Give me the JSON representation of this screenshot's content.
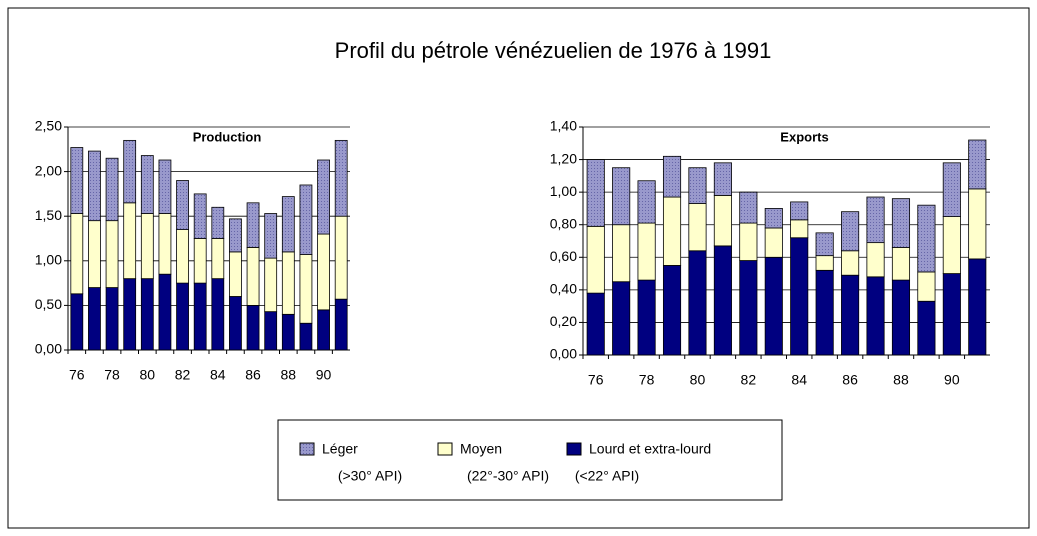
{
  "title": "Profil du pétrole vénézuelien de 1976 à 1991",
  "legend": [
    {
      "name": "Léger",
      "detail": "(>30° API)",
      "color": "#9999cc"
    },
    {
      "name": "Moyen",
      "detail": "(22°-30° API)",
      "color": "#ffffcc"
    },
    {
      "name": "Lourd et extra-lourd",
      "detail": "(<22° API)",
      "color": "#000080"
    }
  ],
  "chart_data": [
    {
      "type": "stacked_bar",
      "title": "Production",
      "categories": [
        "76",
        null,
        "78",
        null,
        "80",
        null,
        "82",
        null,
        "84",
        null,
        "86",
        null,
        "88",
        null,
        "90",
        null
      ],
      "series": [
        {
          "values": [
            0.74,
            0.78,
            0.7,
            0.7,
            0.65,
            0.6,
            0.55,
            0.5,
            0.35,
            0.37,
            0.5,
            0.5,
            0.62,
            0.78,
            0.83,
            0.85
          ]
        },
        {
          "values": [
            0.9,
            0.75,
            0.75,
            0.85,
            0.73,
            0.68,
            0.6,
            0.5,
            0.45,
            0.5,
            0.65,
            0.6,
            0.7,
            0.77,
            0.85,
            0.93
          ]
        },
        {
          "values": [
            0.63,
            0.7,
            0.7,
            0.8,
            0.8,
            0.85,
            0.75,
            0.75,
            0.8,
            0.6,
            0.5,
            0.43,
            0.4,
            0.3,
            0.45,
            0.57
          ]
        }
      ],
      "ylim": [
        0,
        2.5
      ],
      "yticks": [
        {
          "value": 0,
          "label": "0,00"
        },
        {
          "value": 0.5,
          "label": "0,50"
        },
        {
          "value": 1,
          "label": "1,00"
        },
        {
          "value": 1.5,
          "label": "1,50"
        },
        {
          "value": 2,
          "label": "2,00"
        },
        {
          "value": 2.5,
          "label": "2,50"
        }
      ],
      "grid": true
    },
    {
      "type": "stacked_bar",
      "title": "Exports",
      "categories": [
        "76",
        null,
        "78",
        null,
        "80",
        null,
        "82",
        null,
        "84",
        null,
        "86",
        null,
        "88",
        null,
        "90",
        null
      ],
      "series": [
        {
          "values": [
            0.41,
            0.35,
            0.26,
            0.25,
            0.22,
            0.2,
            0.19,
            0.12,
            0.11,
            0.14,
            0.24,
            0.28,
            0.3,
            0.41,
            0.33,
            0.3
          ]
        },
        {
          "values": [
            0.41,
            0.35,
            0.35,
            0.42,
            0.29,
            0.31,
            0.23,
            0.18,
            0.11,
            0.09,
            0.15,
            0.21,
            0.2,
            0.18,
            0.35,
            0.43
          ]
        },
        {
          "values": [
            0.38,
            0.45,
            0.46,
            0.55,
            0.64,
            0.67,
            0.58,
            0.6,
            0.72,
            0.52,
            0.49,
            0.48,
            0.46,
            0.33,
            0.5,
            0.59
          ]
        }
      ],
      "ylim": [
        0,
        1.4
      ],
      "yticks": [
        {
          "value": 0,
          "label": "0,00"
        },
        {
          "value": 0.2,
          "label": "0,20"
        },
        {
          "value": 0.4,
          "label": "0,40"
        },
        {
          "value": 0.6,
          "label": "0,60"
        },
        {
          "value": 0.8,
          "label": "0,80"
        },
        {
          "value": 1,
          "label": "1,00"
        },
        {
          "value": 1.2,
          "label": "1,20"
        },
        {
          "value": 1.4,
          "label": "1,40"
        }
      ],
      "grid": true
    }
  ]
}
